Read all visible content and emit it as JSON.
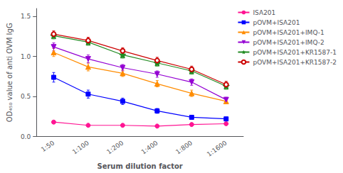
{
  "chart_data": {
    "type": "line",
    "xlabel": "Serum dilution factor",
    "ylabel": "OD₄₅₀ value of anti OVM IgG",
    "categories": [
      "1:50",
      "1:100",
      "1:200",
      "1:400",
      "1:800",
      "1:1600"
    ],
    "series": [
      {
        "name": "ISA201",
        "color": "#FF1493",
        "marker": "circle",
        "line_style": "solid",
        "values": [
          0.18,
          0.14,
          0.14,
          0.13,
          0.15,
          0.16
        ],
        "errors": [
          0.01,
          0.01,
          0.01,
          0.01,
          0.01,
          0.01
        ]
      },
      {
        "name": "pOVM+ISA201",
        "color": "#0000FF",
        "marker": "square",
        "line_style": "solid",
        "values": [
          0.74,
          0.53,
          0.44,
          0.32,
          0.24,
          0.22
        ],
        "errors": [
          0.06,
          0.05,
          0.04,
          0.03,
          0.02,
          0.02
        ]
      },
      {
        "name": "pOVM+ISA201+IMQ-1",
        "color": "#FF8C00",
        "marker": "triangle-up",
        "line_style": "solid",
        "values": [
          1.05,
          0.87,
          0.79,
          0.66,
          0.54,
          0.44
        ],
        "errors": [
          0.05,
          0.05,
          0.04,
          0.04,
          0.04,
          0.03
        ]
      },
      {
        "name": "pOVM+ISA201+IMQ-2",
        "color": "#9400D3",
        "marker": "triangle-down",
        "line_style": "solid",
        "values": [
          1.12,
          0.97,
          0.86,
          0.78,
          0.68,
          0.46
        ],
        "errors": [
          0.05,
          0.05,
          0.04,
          0.04,
          0.04,
          0.03
        ]
      },
      {
        "name": "pOVM+ISA201+KR1587-1",
        "color": "#228B22",
        "marker": "star",
        "line_style": "solid",
        "values": [
          1.26,
          1.18,
          1.02,
          0.92,
          0.82,
          0.63
        ],
        "errors": [
          0.04,
          0.04,
          0.04,
          0.04,
          0.04,
          0.04
        ]
      },
      {
        "name": "pOVM+ISA201+KR1587-2",
        "color": "#CC0000",
        "marker": "open-circle",
        "line_style": "solid",
        "values": [
          1.28,
          1.2,
          1.07,
          0.95,
          0.84,
          0.65
        ],
        "errors": [
          0.04,
          0.04,
          0.04,
          0.04,
          0.04,
          0.04
        ]
      }
    ],
    "ylim": [
      0.0,
      1.6
    ],
    "yticks": [
      {
        "value": 0,
        "label": "0.0"
      },
      0.5,
      {
        "value": 1,
        "label": "1.0"
      },
      1.5
    ],
    "grid": false,
    "legend": "upper right"
  }
}
